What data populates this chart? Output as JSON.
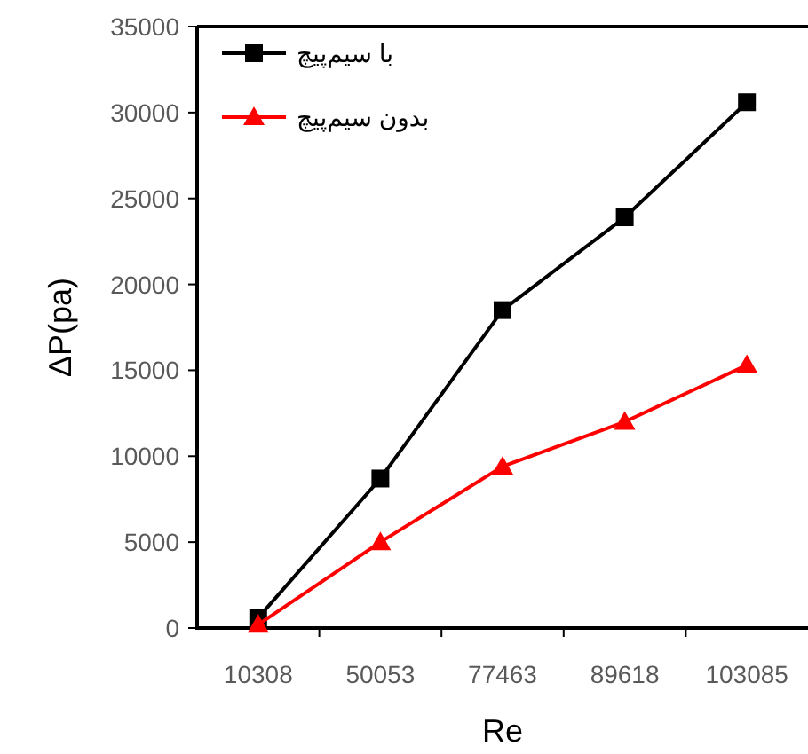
{
  "chart_data": {
    "type": "line",
    "xlabel": "Re",
    "ylabel": "ΔP(pa)",
    "categories": [
      "10308",
      "50053",
      "77463",
      "89618",
      "103085"
    ],
    "series": [
      {
        "name": "با سیم‌پیچ",
        "color": "#000000",
        "marker": "square",
        "values": [
          600,
          8700,
          18500,
          23900,
          30600
        ]
      },
      {
        "name": "بدون سیم‌پیچ",
        "color": "#ff0000",
        "marker": "triangle",
        "values": [
          200,
          5000,
          9400,
          12000,
          15300
        ]
      }
    ],
    "ylim": [
      0,
      35000
    ],
    "yticks": [
      0,
      5000,
      10000,
      15000,
      20000,
      25000,
      30000,
      35000
    ],
    "grid": false,
    "legend": "top left",
    "line_style": "solid"
  }
}
